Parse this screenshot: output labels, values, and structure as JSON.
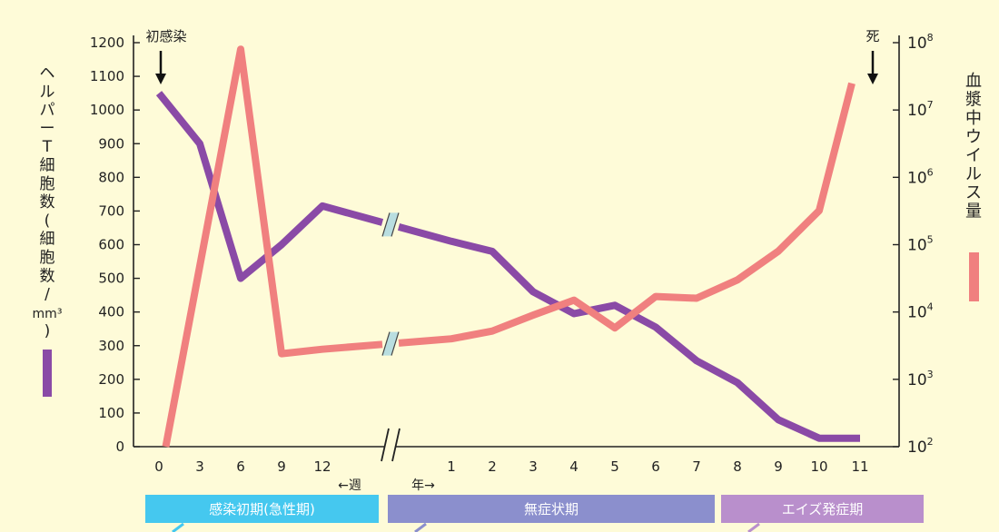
{
  "chart_data": {
    "type": "line",
    "annotations": {
      "infection": "初感染",
      "death": "死"
    },
    "left_axis": {
      "label": "ヘルパーT細胞数(細胞数/mm³)",
      "label_chars": [
        "ヘ",
        "ル",
        "パ",
        "ー",
        "T",
        "細",
        "胞",
        "数",
        "(",
        "細",
        "胞",
        "数",
        "/",
        "mm³",
        ")"
      ],
      "ticks": [
        "0",
        "100",
        "200",
        "300",
        "400",
        "500",
        "600",
        "700",
        "800",
        "900",
        "1000",
        "1100",
        "1200"
      ],
      "ylim": [
        0,
        1200
      ]
    },
    "right_axis": {
      "label": "血漿中ウイルス量",
      "label_chars": [
        "血",
        "漿",
        "中",
        "ウ",
        "イ",
        "ル",
        "ス",
        "量"
      ],
      "scale": "log",
      "ylim": [
        100,
        100000000
      ],
      "tick_base": "10",
      "tick_exponents": [
        "2",
        "3",
        "4",
        "5",
        "6",
        "7",
        "8"
      ]
    },
    "x_axis": {
      "weeks_ticks": [
        "0",
        "3",
        "6",
        "9",
        "12"
      ],
      "years_ticks": [
        "1",
        "2",
        "3",
        "4",
        "5",
        "6",
        "7",
        "8",
        "9",
        "10",
        "11"
      ],
      "weeks_label": "←週",
      "years_label": "年→"
    },
    "phases": [
      {
        "label": "感染初期(急性期)",
        "color": "#45c8ef"
      },
      {
        "label": "無症状期",
        "color": "#8b8fcd"
      },
      {
        "label": "エイズ発症期",
        "color": "#b98fcc"
      }
    ],
    "series": [
      {
        "axis": "left",
        "color": "#8a4aa6",
        "points": [
          {
            "x": "0w",
            "y": 1050
          },
          {
            "x": "3w",
            "y": 900
          },
          {
            "x": "6w",
            "y": 500
          },
          {
            "x": "9w",
            "y": 600
          },
          {
            "x": "12w",
            "y": 715
          },
          {
            "x": "1y",
            "y": 610
          },
          {
            "x": "2y",
            "y": 580
          },
          {
            "x": "3y",
            "y": 460
          },
          {
            "x": "4y",
            "y": 395
          },
          {
            "x": "5y",
            "y": 420
          },
          {
            "x": "6y",
            "y": 355
          },
          {
            "x": "7y",
            "y": 255
          },
          {
            "x": "8y",
            "y": 190
          },
          {
            "x": "9y",
            "y": 80
          },
          {
            "x": "10y",
            "y": 25
          },
          {
            "x": "11y",
            "y": 25
          }
        ]
      },
      {
        "axis": "right",
        "color": "#f0807f",
        "points": [
          {
            "x": "0.5w",
            "y": 100
          },
          {
            "x": "6w",
            "y": 80000000
          },
          {
            "x": "9w",
            "y": 2400
          },
          {
            "x": "12w",
            "y": 2800
          },
          {
            "x": "1y",
            "y": 4000
          },
          {
            "x": "2y",
            "y": 5200
          },
          {
            "x": "3y",
            "y": 9000
          },
          {
            "x": "4y",
            "y": 15000
          },
          {
            "x": "5y",
            "y": 5800
          },
          {
            "x": "6y",
            "y": 17000
          },
          {
            "x": "7y",
            "y": 16000
          },
          {
            "x": "8y",
            "y": 30000
          },
          {
            "x": "9y",
            "y": 80000
          },
          {
            "x": "10y",
            "y": 320000
          },
          {
            "x": "10.8y",
            "y": 25000000
          }
        ]
      }
    ]
  }
}
